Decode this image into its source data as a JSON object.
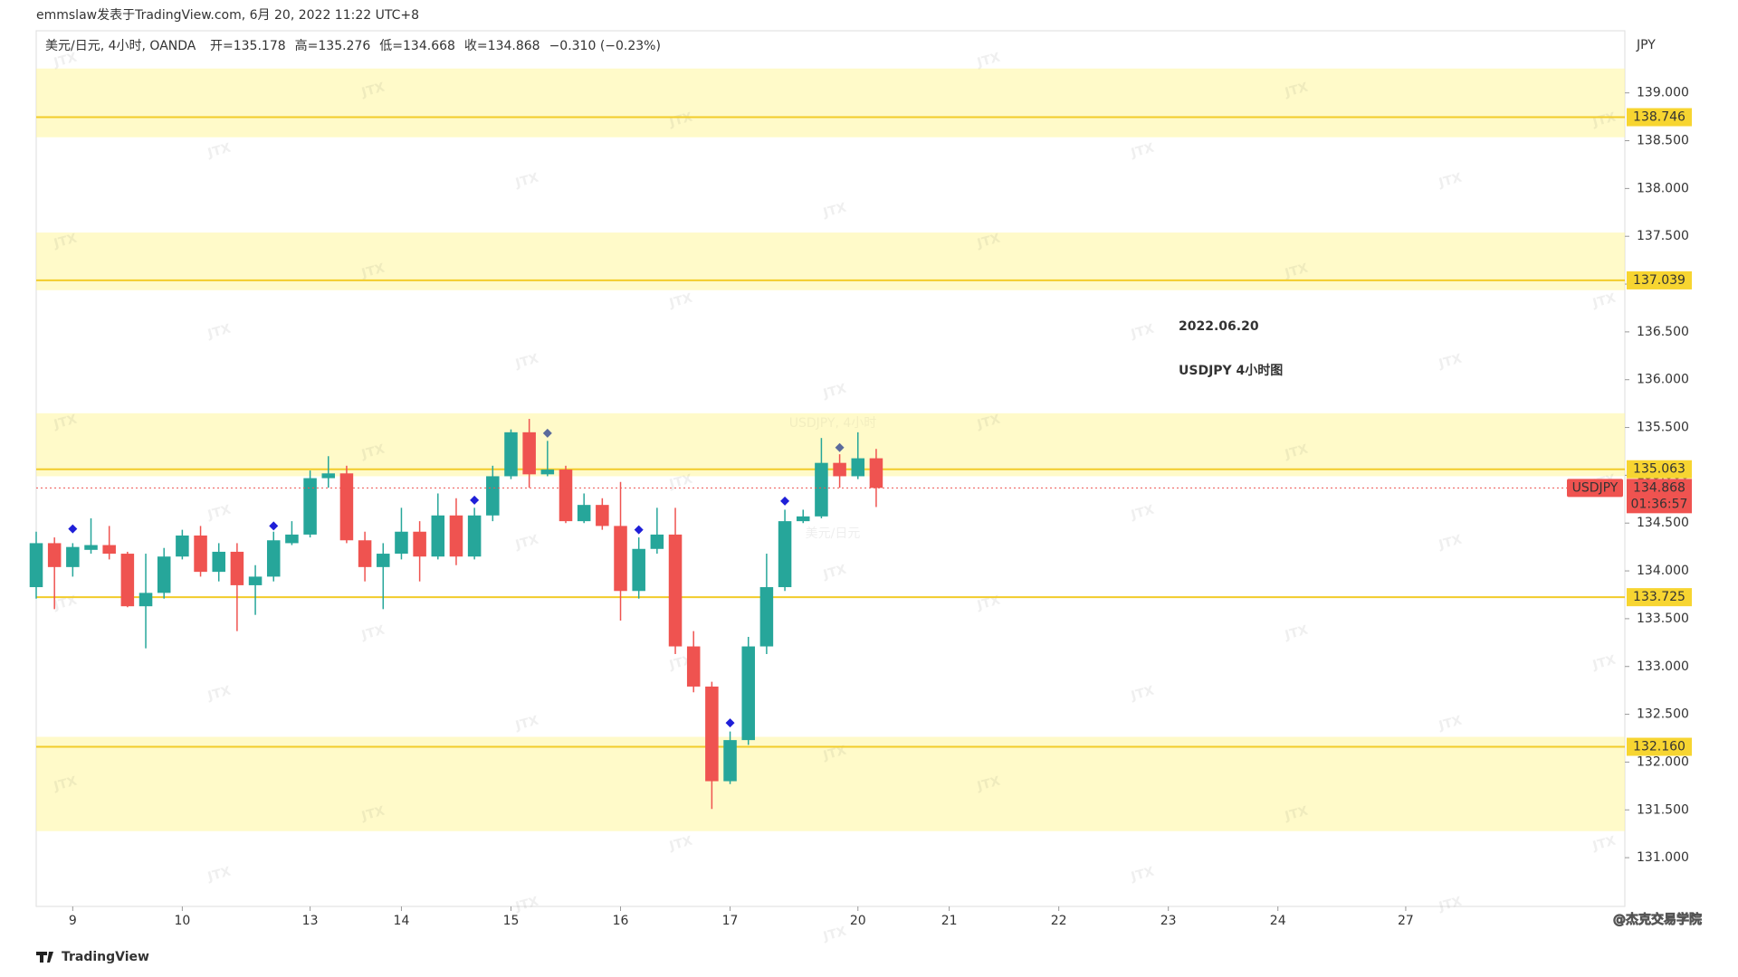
{
  "header": "emmslaw发表于TradingView.com, 6月 20, 2022 11:22 UTC+8",
  "chart_data": {
    "type": "candlestick",
    "symbol": "美元/日元, 4小时, OANDA",
    "ohlc_labels": [
      "开=",
      "高=",
      "低=",
      "收="
    ],
    "change": "−0.310 (−0.23%)",
    "watermark": "USDJPY, 4小时",
    "watermark_sub": "美元/日元",
    "pattern": "JTX",
    "annotation": [
      "2022.06.20",
      "USDJPY 4小时图"
    ],
    "currency": "JPY",
    "ticker": "USDJPY",
    "countdown": "01:36:57",
    "up_color": "#26a69a",
    "down_color": "#ef5350",
    "open": [
      133.83,
      134.29,
      134.04,
      134.22,
      134.27,
      134.18,
      133.63,
      133.77,
      134.15,
      134.37,
      133.99,
      134.2,
      133.85,
      133.94,
      134.29,
      134.38,
      134.97,
      135.02,
      134.32,
      134.04,
      134.18,
      134.41,
      134.15,
      134.58,
      134.15,
      134.58,
      134.99,
      135.45,
      135.01,
      135.06,
      134.52,
      134.69,
      134.47,
      133.79,
      134.23,
      134.38,
      133.21,
      132.79,
      131.8,
      132.23,
      133.21,
      133.83,
      134.52,
      134.57,
      135.13,
      134.99,
      135.178
    ],
    "high": [
      134.41,
      134.35,
      134.29,
      134.55,
      134.47,
      134.2,
      134.18,
      134.24,
      134.43,
      134.47,
      134.29,
      134.29,
      134.06,
      134.41,
      134.52,
      135.05,
      135.2,
      135.1,
      134.41,
      134.29,
      134.66,
      134.52,
      134.81,
      134.76,
      134.66,
      135.1,
      135.48,
      135.59,
      135.36,
      135.1,
      134.81,
      134.76,
      134.93,
      134.35,
      134.66,
      134.66,
      133.37,
      132.84,
      132.32,
      133.31,
      134.18,
      134.64,
      134.64,
      135.39,
      135.22,
      135.45,
      135.276
    ],
    "low": [
      133.71,
      133.6,
      133.94,
      134.18,
      134.12,
      133.62,
      133.19,
      133.71,
      134.12,
      133.94,
      133.89,
      133.37,
      133.54,
      133.89,
      134.27,
      134.35,
      134.87,
      134.29,
      133.89,
      133.6,
      134.12,
      133.89,
      134.12,
      134.06,
      134.12,
      134.52,
      134.96,
      134.87,
      134.99,
      134.5,
      134.5,
      134.43,
      133.48,
      133.71,
      134.18,
      133.13,
      132.73,
      131.51,
      131.77,
      132.18,
      133.13,
      133.79,
      134.5,
      134.55,
      134.87,
      134.96,
      134.668
    ],
    "close": [
      134.29,
      134.04,
      134.25,
      134.27,
      134.18,
      133.63,
      133.77,
      134.15,
      134.37,
      133.99,
      134.2,
      133.85,
      133.94,
      134.32,
      134.38,
      134.97,
      135.02,
      134.32,
      134.04,
      134.18,
      134.41,
      134.15,
      134.58,
      134.15,
      134.58,
      134.99,
      135.45,
      135.01,
      135.06,
      134.52,
      134.69,
      134.47,
      133.79,
      134.23,
      134.38,
      133.21,
      132.79,
      131.8,
      132.23,
      133.21,
      133.83,
      134.52,
      134.57,
      135.13,
      134.99,
      135.178,
      134.868
    ],
    "last": 134.868,
    "markers": [
      {
        "x": 2,
        "y": 134.44,
        "color": "#1f1fd8"
      },
      {
        "x": 13,
        "y": 134.47,
        "color": "#1f1fd8"
      },
      {
        "x": 24,
        "y": 134.74,
        "color": "#1f1fd8"
      },
      {
        "x": 28,
        "y": 135.44,
        "color": "#5b6b9c"
      },
      {
        "x": 33,
        "y": 134.43,
        "color": "#1f1fd8"
      },
      {
        "x": 38,
        "y": 132.41,
        "color": "#1f1fd8"
      },
      {
        "x": 41,
        "y": 134.73,
        "color": "#1f1fd8"
      },
      {
        "x": 44,
        "y": 135.29,
        "color": "#5b6b9c"
      }
    ],
    "zones": [
      [
        138.536,
        139.255
      ],
      [
        136.936,
        137.539
      ],
      [
        134.99,
        135.649
      ],
      [
        131.278,
        132.264
      ]
    ],
    "levels": [
      138.746,
      137.039,
      135.063,
      133.725,
      {
        "value": 132.16,
        "label": "132.160"
      }
    ],
    "xlim": [
      0,
      87
    ],
    "xticks": [
      {
        "value": 2,
        "label": "9"
      },
      {
        "value": 8,
        "label": "10"
      },
      {
        "value": 15,
        "label": "13"
      },
      {
        "value": 20,
        "label": "14"
      },
      {
        "value": 26,
        "label": "15"
      },
      {
        "value": 32,
        "label": "16"
      },
      {
        "value": 38,
        "label": "17"
      },
      {
        "value": 45,
        "label": "20"
      },
      {
        "value": 50,
        "label": "21"
      },
      {
        "value": 56,
        "label": "22"
      },
      {
        "value": 62,
        "label": "23"
      },
      {
        "value": 68,
        "label": "24"
      },
      {
        "value": 75,
        "label": "27"
      }
    ],
    "ylim": [
      130.49,
      139.65
    ],
    "yticks": [
      {
        "value": 131,
        "label": "131.000"
      },
      {
        "value": 131.5,
        "label": "131.500"
      },
      {
        "value": 132,
        "label": "132.000"
      },
      {
        "value": 132.5,
        "label": "132.500"
      },
      {
        "value": 133,
        "label": "133.000"
      },
      {
        "value": 133.5,
        "label": "133.500"
      },
      {
        "value": 134,
        "label": "134.000"
      },
      {
        "value": 134.5,
        "label": "134.500"
      },
      {
        "value": 135,
        "label": "135.000"
      },
      {
        "value": 135.5,
        "label": "135.500"
      },
      {
        "value": 136,
        "label": "136.000"
      },
      {
        "value": 136.5,
        "label": "136.500"
      },
      {
        "value": 137,
        "label": "137.000"
      },
      {
        "value": 137.5,
        "label": "137.500"
      },
      {
        "value": 138,
        "label": "138.000"
      },
      {
        "value": 138.5,
        "label": "138.500"
      },
      {
        "value": 139,
        "label": "139.000"
      }
    ]
  },
  "footer": {
    "logo": "TradingView",
    "credit": "@杰克交易学院"
  }
}
